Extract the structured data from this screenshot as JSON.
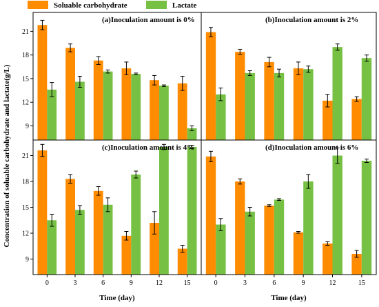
{
  "figure": {
    "ylabel": "Concentration of soluable carbohydrate and lactate(g/L)",
    "legend": [
      {
        "label": "Soluable carbohydrate",
        "color": "#ff8c00"
      },
      {
        "label": "Lactate",
        "color": "#76c043"
      }
    ]
  },
  "chart_data": [
    {
      "type": "bar",
      "title": "(a)Inoculation amount is 0%",
      "xlabel": "Time (day)",
      "ylabel": "",
      "categories": [
        "0",
        "3",
        "6",
        "9",
        "12",
        "15"
      ],
      "yticks": [
        9,
        12,
        15,
        18,
        21
      ],
      "ylim": [
        7.2,
        23.4
      ],
      "series": [
        {
          "name": "Soluable carbohydrate",
          "color": "#ff8c00",
          "values": [
            21.8,
            18.9,
            17.3,
            16.3,
            14.8,
            14.4
          ],
          "errors": [
            0.6,
            0.5,
            0.5,
            0.8,
            0.6,
            0.9
          ]
        },
        {
          "name": "Lactate",
          "color": "#76c043",
          "values": [
            13.6,
            14.6,
            15.9,
            15.6,
            14.1,
            8.7
          ],
          "errors": [
            0.9,
            0.7,
            0.2,
            0.1,
            0.1,
            0.3
          ]
        }
      ]
    },
    {
      "type": "bar",
      "title": "(b)Inoculation amount is 2%",
      "xlabel": "Time (day)",
      "ylabel": "",
      "categories": [
        "0",
        "3",
        "6",
        "9",
        "12",
        "15"
      ],
      "yticks": [
        9,
        12,
        15,
        18,
        21
      ],
      "ylim": [
        7.2,
        23.4
      ],
      "series": [
        {
          "name": "Soluable carbohydrate",
          "color": "#ff8c00",
          "values": [
            20.9,
            18.4,
            17.1,
            16.3,
            12.2,
            12.4
          ],
          "errors": [
            0.6,
            0.3,
            0.6,
            0.8,
            0.8,
            0.3
          ]
        },
        {
          "name": "Lactate",
          "color": "#76c043",
          "values": [
            13.0,
            15.7,
            15.7,
            16.2,
            19.0,
            17.6
          ],
          "errors": [
            0.8,
            0.3,
            0.5,
            0.4,
            0.4,
            0.4
          ]
        }
      ]
    },
    {
      "type": "bar",
      "title": "(c)Inoculation amount is 4%",
      "xlabel": "Time (day)",
      "ylabel": "",
      "categories": [
        "0",
        "3",
        "6",
        "9",
        "12",
        "15"
      ],
      "yticks": [
        9,
        12,
        15,
        18,
        21
      ],
      "ylim": [
        7.2,
        22.8
      ],
      "series": [
        {
          "name": "Soluable carbohydrate",
          "color": "#ff8c00",
          "values": [
            21.6,
            18.3,
            16.9,
            11.7,
            13.2,
            10.2
          ],
          "errors": [
            0.7,
            0.5,
            0.5,
            0.5,
            1.3,
            0.4
          ]
        },
        {
          "name": "Lactate",
          "color": "#76c043",
          "values": [
            13.5,
            14.7,
            15.3,
            18.8,
            22.0,
            22.0
          ],
          "errors": [
            0.7,
            0.5,
            0.8,
            0.4,
            0.3,
            0.2
          ]
        }
      ]
    },
    {
      "type": "bar",
      "title": "(d)Inoculation amount is 6%",
      "xlabel": "Time (day)",
      "ylabel": "",
      "categories": [
        "0",
        "3",
        "6",
        "9",
        "12",
        "15"
      ],
      "yticks": [
        9,
        12,
        15,
        18,
        21
      ],
      "ylim": [
        7.2,
        22.8
      ],
      "series": [
        {
          "name": "Soluable carbohydrate",
          "color": "#ff8c00",
          "values": [
            20.9,
            18.0,
            15.2,
            12.1,
            10.8,
            9.6
          ],
          "errors": [
            0.6,
            0.3,
            0.1,
            0.1,
            0.2,
            0.4
          ]
        },
        {
          "name": "Lactate",
          "color": "#76c043",
          "values": [
            13.0,
            14.5,
            15.9,
            18.0,
            21.0,
            20.4
          ],
          "errors": [
            0.7,
            0.5,
            0.1,
            0.8,
            0.9,
            0.2
          ]
        }
      ]
    }
  ]
}
